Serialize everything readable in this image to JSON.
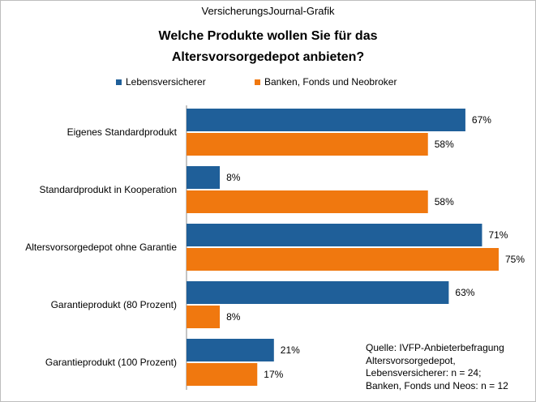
{
  "header": {
    "source_label": "VersicherungsJournal-Grafik",
    "title_lines": [
      "Welche Produkte  wollen Sie für das",
      "Altersvorsorgedepot  anbieten?"
    ]
  },
  "note": {
    "lines": [
      "Quelle: IVFP-Anbieterbefragung",
      "Altersvorsorgedepot,",
      "Lebensversicherer:  n = 24;",
      "Banken, Fonds und Neos: n = 12"
    ]
  },
  "chart_data": {
    "type": "bar",
    "orientation": "horizontal",
    "categories": [
      "Eigenes Standardprodukt",
      "Standardprodukt in Kooperation",
      "Altersvorsorgedepot ohne Garantie",
      "Garantieprodukt (80 Prozent)",
      "Garantieprodukt (100 Prozent)"
    ],
    "series": [
      {
        "name": "Lebensversicherer",
        "color": "#1f5f99",
        "values": [
          67,
          8,
          71,
          63,
          21
        ]
      },
      {
        "name": "Banken, Fonds und Neobroker",
        "color": "#f0780f",
        "values": [
          58,
          58,
          75,
          8,
          17
        ]
      }
    ],
    "value_suffix": "%",
    "xlim": [
      0,
      75
    ],
    "grid": false,
    "legend_position": "top"
  }
}
